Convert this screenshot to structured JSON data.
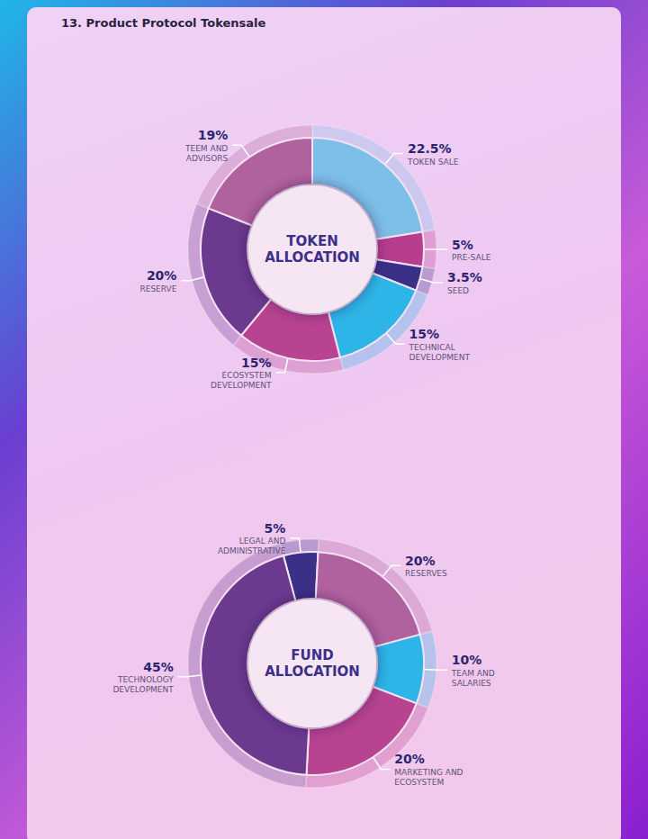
{
  "title": "13. Product Protocol Tokensale",
  "chart_data": [
    {
      "type": "pie",
      "title": "TOKEN ALLOCATION",
      "categories": [
        "TOKEN SALE",
        "PRE-SALE",
        "SEED",
        "TECHNICAL DEVELOPMENT",
        "ECOSYSTEM DEVELOPMENT",
        "RESERVE",
        "TEEM AND ADVISORS"
      ],
      "values": [
        22.5,
        5,
        3.5,
        15,
        15,
        20,
        19
      ],
      "value_labels": [
        "22.5%",
        "5%",
        "3.5%",
        "15%",
        "15%",
        "20%",
        "19%"
      ],
      "colors": [
        "#7dbfe8",
        "#b83d8f",
        "#3b3087",
        "#2eb5e8",
        "#b84390",
        "#6b3a8f",
        "#b0629e"
      ],
      "data_labels": true
    },
    {
      "type": "pie",
      "title": "FUND ALLOCATION",
      "categories": [
        "LEGAL AND ADMINISTRATIVE",
        "RESERVES",
        "TEAM AND SALARIES",
        "MARKETING AND ECOSYSTEM",
        "TECHNOLOGY DEVELOPMENT"
      ],
      "values": [
        5,
        20,
        10,
        20,
        45
      ],
      "value_labels": [
        "5%",
        "20%",
        "10%",
        "20%",
        "45%"
      ],
      "colors": [
        "#3b3087",
        "#b0629e",
        "#2eb5e8",
        "#b84390",
        "#6b3a8f"
      ],
      "data_labels": true
    }
  ]
}
